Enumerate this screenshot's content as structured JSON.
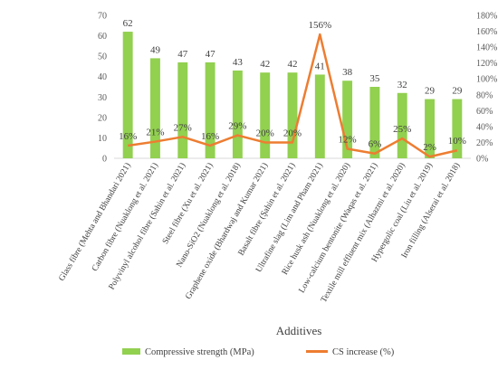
{
  "chart_data": {
    "type": "bar",
    "xlabel": "Additives",
    "categories": [
      "Glass fibre (Mehta and Bhandari 2021)",
      "Carbon fibre (Nuaklong et al. 2021)",
      "Polyvinyl alcohol fibre (Sahin et al. 2021)",
      "Steel fibre (Xu et al. 2021)",
      "Nano-SiO2 (Nuaklong et al. 2018)",
      "Graphene oxide (Bhardwaj and Kumar 2021)",
      "Basalt fibre (Şahin et al. 2021)",
      "Ultrafine slag (Lim and Pham 2021)",
      "Rice husk ash (Nuaklong et al. 2020)",
      "Low-calcium bentonite (Waqas et al. 2021)",
      "Textile mill effluent mix (Alhazmi et al. 2020)",
      "Hypergolic coal (Liu et al. 2019)",
      "Iron filling (Alserai et al. 2018)"
    ],
    "series": [
      {
        "name": "Compressive strength (MPa)",
        "type": "bar",
        "axis": "left",
        "values": [
          62,
          49,
          47,
          47,
          43,
          42,
          42,
          41,
          38,
          35,
          32,
          29,
          29
        ],
        "labels": [
          "62",
          "49",
          "47",
          "47",
          "43",
          "42",
          "42",
          "41",
          "38",
          "35",
          "32",
          "29",
          "29"
        ],
        "color": "#92d050"
      },
      {
        "name": "CS increase (%)",
        "type": "line",
        "axis": "right",
        "values": [
          16,
          21,
          27,
          16,
          29,
          20,
          20,
          156,
          12,
          6,
          25,
          2,
          10
        ],
        "labels": [
          "16%",
          "21%",
          "27%",
          "16%",
          "29%",
          "20%",
          "20%",
          "156%",
          "12%",
          "6%",
          "25%",
          "2%",
          "10%"
        ],
        "color": "#ed7d31"
      }
    ],
    "y_left": {
      "min": 0,
      "max": 70,
      "step": 10,
      "ticks": [
        "0",
        "10",
        "20",
        "30",
        "40",
        "50",
        "60",
        "70"
      ]
    },
    "y_right": {
      "min": 0,
      "max": 180,
      "step": 20,
      "ticks": [
        "0%",
        "20%",
        "40%",
        "60%",
        "80%",
        "100%",
        "120%",
        "140%",
        "160%",
        "180%"
      ]
    },
    "grid": false,
    "legend": "bottom"
  }
}
